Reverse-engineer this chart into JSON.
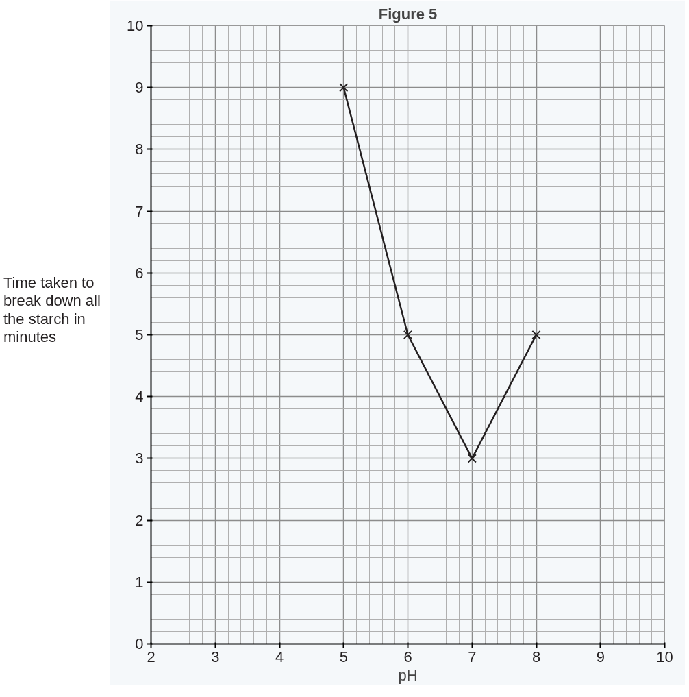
{
  "chart_data": {
    "type": "line",
    "title": "Figure 5",
    "xlabel": "pH",
    "ylabel": "Time taken to break down all the starch in minutes",
    "x": [
      5,
      6,
      7,
      8
    ],
    "series": [
      {
        "color": "#231f20",
        "values": [
          9,
          5,
          3,
          5
        ]
      }
    ],
    "marker": "cross",
    "grid": true,
    "xlim": [
      2,
      10
    ],
    "ylim": [
      0,
      10
    ],
    "xticks": [
      2,
      3,
      4,
      5,
      6,
      7,
      8,
      9,
      10
    ],
    "yticks": [
      0,
      1,
      2,
      3,
      4,
      5,
      6,
      7,
      8,
      9,
      10
    ]
  }
}
